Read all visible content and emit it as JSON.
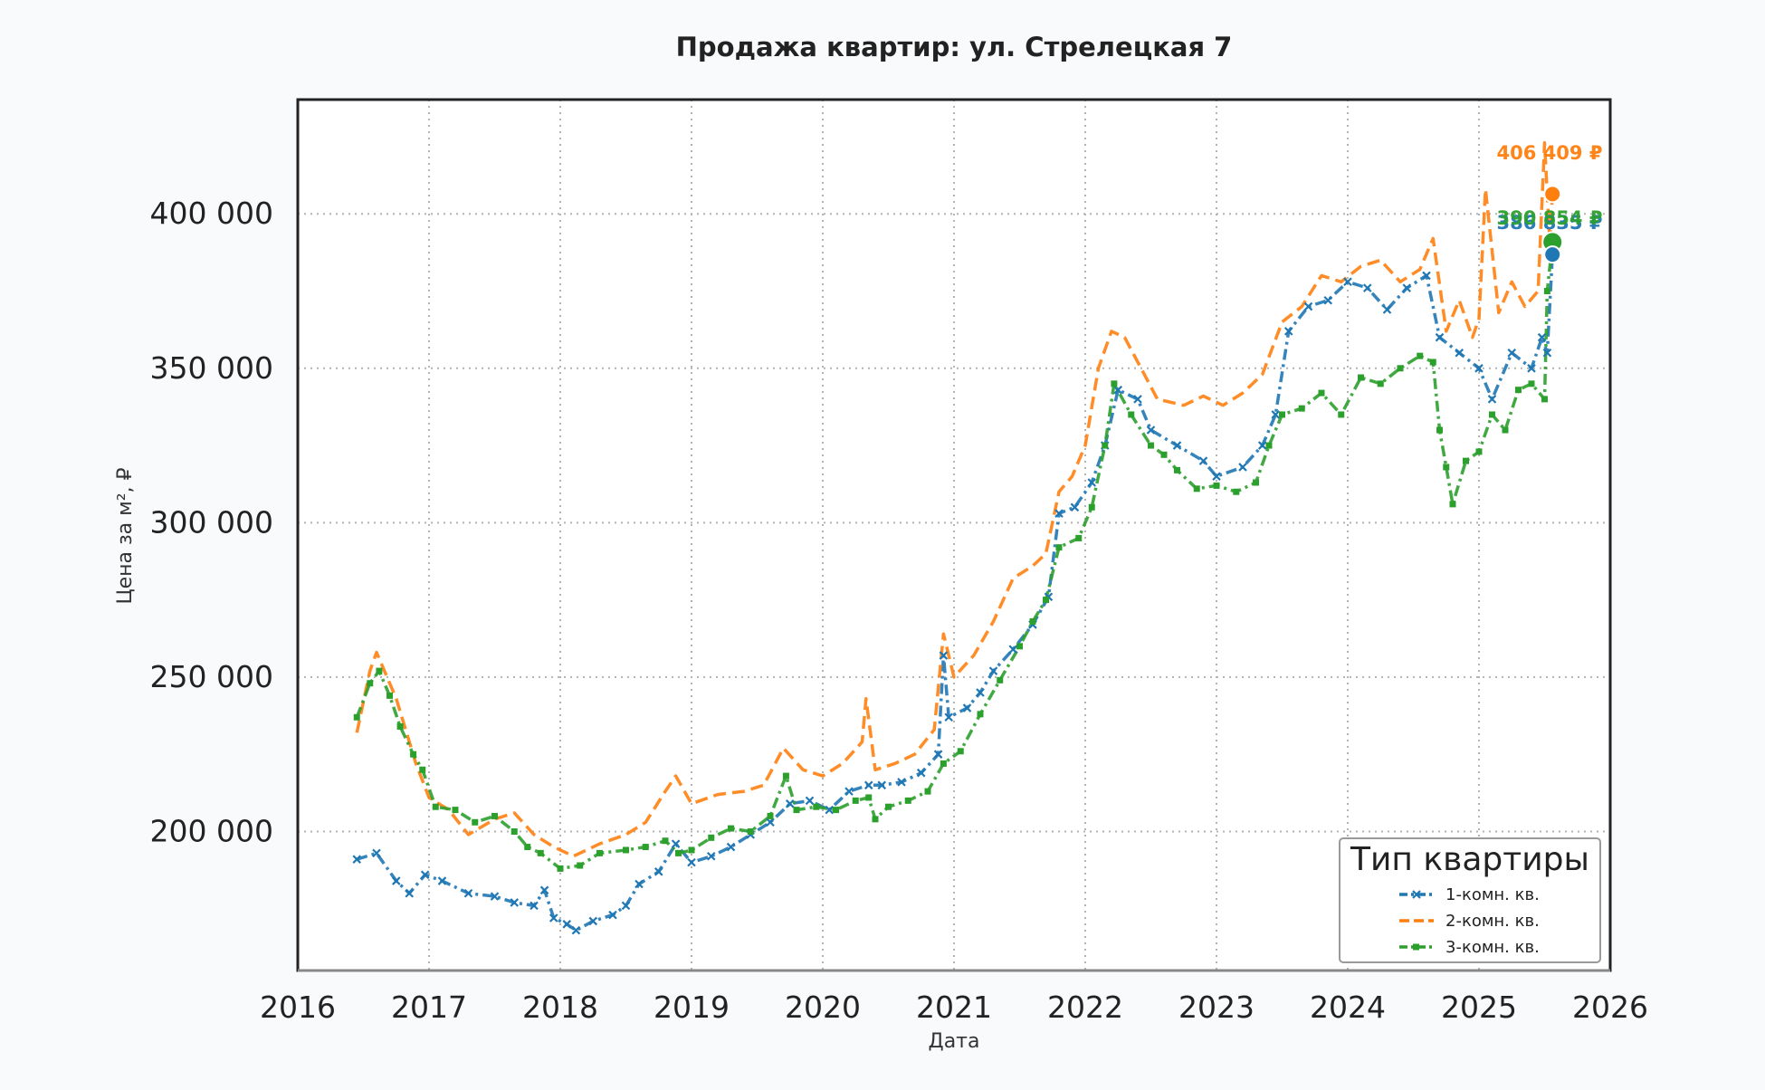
{
  "chart_data": {
    "type": "line",
    "title": "Продажа квартир: ул. Стрелецкая 7",
    "xlabel": "Дата",
    "ylabel": "Цена за м², ₽",
    "xlim": [
      2016.0,
      2026.0
    ],
    "ylim": [
      155000,
      437000
    ],
    "x_ticks": [
      2016,
      2017,
      2018,
      2019,
      2020,
      2021,
      2022,
      2023,
      2024,
      2025,
      2026
    ],
    "x_tick_labels": [
      "2016",
      "2017",
      "2018",
      "2019",
      "2020",
      "2021",
      "2022",
      "2023",
      "2024",
      "2025",
      "2026"
    ],
    "y_ticks": [
      200000,
      250000,
      300000,
      350000,
      400000
    ],
    "y_tick_labels": [
      "200 000",
      "250 000",
      "300 000",
      "350 000",
      "400 000"
    ],
    "grid": true,
    "legend": {
      "title": "Тип квартиры",
      "placement": "bottom-right"
    },
    "series": [
      {
        "name": "1-комн. кв.",
        "color": "#1f77b4",
        "dash": "dashdot",
        "marker": "x",
        "points": [
          [
            2016.45,
            191000
          ],
          [
            2016.6,
            193000
          ],
          [
            2016.75,
            184000
          ],
          [
            2016.85,
            180000
          ],
          [
            2016.97,
            186000
          ],
          [
            2017.1,
            184000
          ],
          [
            2017.3,
            180000
          ],
          [
            2017.5,
            179000
          ],
          [
            2017.65,
            177000
          ],
          [
            2017.8,
            176000
          ],
          [
            2017.88,
            181000
          ],
          [
            2017.95,
            172000
          ],
          [
            2018.05,
            170000
          ],
          [
            2018.12,
            168000
          ],
          [
            2018.25,
            171000
          ],
          [
            2018.4,
            173000
          ],
          [
            2018.5,
            176000
          ],
          [
            2018.6,
            183000
          ],
          [
            2018.75,
            187000
          ],
          [
            2018.88,
            196000
          ],
          [
            2019.0,
            190000
          ],
          [
            2019.15,
            192000
          ],
          [
            2019.3,
            195000
          ],
          [
            2019.45,
            199000
          ],
          [
            2019.6,
            203000
          ],
          [
            2019.75,
            209000
          ],
          [
            2019.9,
            210000
          ],
          [
            2020.05,
            207000
          ],
          [
            2020.2,
            213000
          ],
          [
            2020.35,
            215000
          ],
          [
            2020.45,
            215000
          ],
          [
            2020.6,
            216000
          ],
          [
            2020.75,
            219000
          ],
          [
            2020.88,
            225000
          ],
          [
            2020.92,
            257000
          ],
          [
            2020.96,
            237000
          ],
          [
            2021.1,
            240000
          ],
          [
            2021.2,
            245000
          ],
          [
            2021.3,
            252000
          ],
          [
            2021.45,
            259000
          ],
          [
            2021.6,
            267000
          ],
          [
            2021.72,
            276000
          ],
          [
            2021.8,
            303000
          ],
          [
            2021.92,
            305000
          ],
          [
            2022.05,
            313000
          ],
          [
            2022.15,
            325000
          ],
          [
            2022.25,
            343000
          ],
          [
            2022.4,
            340000
          ],
          [
            2022.5,
            330000
          ],
          [
            2022.7,
            325000
          ],
          [
            2022.9,
            320000
          ],
          [
            2023.0,
            315000
          ],
          [
            2023.2,
            318000
          ],
          [
            2023.35,
            325000
          ],
          [
            2023.45,
            335000
          ],
          [
            2023.55,
            362000
          ],
          [
            2023.7,
            370000
          ],
          [
            2023.85,
            372000
          ],
          [
            2024.0,
            378000
          ],
          [
            2024.15,
            376000
          ],
          [
            2024.3,
            369000
          ],
          [
            2024.45,
            376000
          ],
          [
            2024.6,
            380000
          ],
          [
            2024.7,
            360000
          ],
          [
            2024.85,
            355000
          ],
          [
            2025.0,
            350000
          ],
          [
            2025.1,
            340000
          ],
          [
            2025.25,
            355000
          ],
          [
            2025.4,
            350000
          ],
          [
            2025.48,
            360000
          ],
          [
            2025.52,
            355000
          ],
          [
            2025.56,
            386835
          ]
        ]
      },
      {
        "name": "2-комн. кв.",
        "color": "#ff7f0e",
        "dash": "dashed",
        "marker": "none",
        "points": [
          [
            2016.45,
            232000
          ],
          [
            2016.55,
            252000
          ],
          [
            2016.6,
            258000
          ],
          [
            2016.75,
            243000
          ],
          [
            2016.9,
            222000
          ],
          [
            2017.0,
            211000
          ],
          [
            2017.15,
            207000
          ],
          [
            2017.3,
            199000
          ],
          [
            2017.5,
            204000
          ],
          [
            2017.65,
            206000
          ],
          [
            2017.8,
            199000
          ],
          [
            2017.95,
            195000
          ],
          [
            2018.1,
            192000
          ],
          [
            2018.3,
            196000
          ],
          [
            2018.5,
            199000
          ],
          [
            2018.65,
            203000
          ],
          [
            2018.8,
            213000
          ],
          [
            2018.88,
            218000
          ],
          [
            2019.0,
            209000
          ],
          [
            2019.2,
            212000
          ],
          [
            2019.4,
            213000
          ],
          [
            2019.55,
            215000
          ],
          [
            2019.7,
            227000
          ],
          [
            2019.85,
            220000
          ],
          [
            2020.0,
            218000
          ],
          [
            2020.15,
            222000
          ],
          [
            2020.3,
            229000
          ],
          [
            2020.33,
            243000
          ],
          [
            2020.4,
            220000
          ],
          [
            2020.55,
            222000
          ],
          [
            2020.7,
            225000
          ],
          [
            2020.85,
            233000
          ],
          [
            2020.92,
            264000
          ],
          [
            2021.0,
            250000
          ],
          [
            2021.15,
            257000
          ],
          [
            2021.3,
            268000
          ],
          [
            2021.45,
            282000
          ],
          [
            2021.6,
            286000
          ],
          [
            2021.7,
            290000
          ],
          [
            2021.8,
            310000
          ],
          [
            2021.9,
            315000
          ],
          [
            2022.0,
            325000
          ],
          [
            2022.1,
            350000
          ],
          [
            2022.2,
            362000
          ],
          [
            2022.3,
            360000
          ],
          [
            2022.45,
            348000
          ],
          [
            2022.55,
            340000
          ],
          [
            2022.75,
            338000
          ],
          [
            2022.9,
            341000
          ],
          [
            2023.05,
            338000
          ],
          [
            2023.2,
            342000
          ],
          [
            2023.35,
            348000
          ],
          [
            2023.5,
            365000
          ],
          [
            2023.65,
            370000
          ],
          [
            2023.8,
            380000
          ],
          [
            2023.95,
            378000
          ],
          [
            2024.1,
            383000
          ],
          [
            2024.25,
            385000
          ],
          [
            2024.4,
            378000
          ],
          [
            2024.55,
            382000
          ],
          [
            2024.65,
            392000
          ],
          [
            2024.75,
            362000
          ],
          [
            2024.85,
            372000
          ],
          [
            2024.95,
            360000
          ],
          [
            2025.0,
            366000
          ],
          [
            2025.05,
            408000
          ],
          [
            2025.15,
            368000
          ],
          [
            2025.25,
            378000
          ],
          [
            2025.35,
            370000
          ],
          [
            2025.45,
            375000
          ],
          [
            2025.5,
            423000
          ],
          [
            2025.54,
            390000
          ],
          [
            2025.56,
            406409
          ]
        ]
      },
      {
        "name": "3-комн. кв.",
        "color": "#2ca02c",
        "dash": "dashdot",
        "marker": "square",
        "points": [
          [
            2016.45,
            237000
          ],
          [
            2016.55,
            248000
          ],
          [
            2016.62,
            252000
          ],
          [
            2016.7,
            244000
          ],
          [
            2016.78,
            234000
          ],
          [
            2016.88,
            225000
          ],
          [
            2016.95,
            220000
          ],
          [
            2017.05,
            208000
          ],
          [
            2017.2,
            207000
          ],
          [
            2017.35,
            203000
          ],
          [
            2017.5,
            205000
          ],
          [
            2017.65,
            200000
          ],
          [
            2017.75,
            195000
          ],
          [
            2017.85,
            193000
          ],
          [
            2018.0,
            188000
          ],
          [
            2018.15,
            189000
          ],
          [
            2018.3,
            193000
          ],
          [
            2018.5,
            194000
          ],
          [
            2018.65,
            195000
          ],
          [
            2018.8,
            197000
          ],
          [
            2018.9,
            193000
          ],
          [
            2019.0,
            194000
          ],
          [
            2019.15,
            198000
          ],
          [
            2019.3,
            201000
          ],
          [
            2019.45,
            200000
          ],
          [
            2019.6,
            205000
          ],
          [
            2019.72,
            218000
          ],
          [
            2019.8,
            207000
          ],
          [
            2019.95,
            208000
          ],
          [
            2020.1,
            207000
          ],
          [
            2020.25,
            210000
          ],
          [
            2020.35,
            211000
          ],
          [
            2020.4,
            204000
          ],
          [
            2020.5,
            208000
          ],
          [
            2020.65,
            210000
          ],
          [
            2020.8,
            213000
          ],
          [
            2020.92,
            222000
          ],
          [
            2021.05,
            226000
          ],
          [
            2021.2,
            238000
          ],
          [
            2021.35,
            249000
          ],
          [
            2021.5,
            260000
          ],
          [
            2021.6,
            268000
          ],
          [
            2021.7,
            275000
          ],
          [
            2021.8,
            292000
          ],
          [
            2021.95,
            295000
          ],
          [
            2022.05,
            305000
          ],
          [
            2022.15,
            325000
          ],
          [
            2022.22,
            345000
          ],
          [
            2022.35,
            335000
          ],
          [
            2022.5,
            325000
          ],
          [
            2022.6,
            322000
          ],
          [
            2022.7,
            317000
          ],
          [
            2022.85,
            311000
          ],
          [
            2023.0,
            312000
          ],
          [
            2023.15,
            310000
          ],
          [
            2023.3,
            313000
          ],
          [
            2023.4,
            325000
          ],
          [
            2023.5,
            335000
          ],
          [
            2023.65,
            337000
          ],
          [
            2023.8,
            342000
          ],
          [
            2023.95,
            335000
          ],
          [
            2024.1,
            347000
          ],
          [
            2024.25,
            345000
          ],
          [
            2024.4,
            350000
          ],
          [
            2024.55,
            354000
          ],
          [
            2024.65,
            352000
          ],
          [
            2024.7,
            330000
          ],
          [
            2024.75,
            318000
          ],
          [
            2024.8,
            306000
          ],
          [
            2024.9,
            320000
          ],
          [
            2025.0,
            323000
          ],
          [
            2025.1,
            335000
          ],
          [
            2025.2,
            330000
          ],
          [
            2025.3,
            343000
          ],
          [
            2025.4,
            345000
          ],
          [
            2025.5,
            340000
          ],
          [
            2025.52,
            375000
          ],
          [
            2025.56,
            390854
          ]
        ]
      }
    ],
    "annotations": [
      {
        "series": "2-комн. кв.",
        "x": 2025.56,
        "y": 406409,
        "text": "406 409 ₽",
        "color": "#ff7f0e"
      },
      {
        "series": "3-комн. кв.",
        "x": 2025.56,
        "y": 390854,
        "text": "390 854 ₽",
        "color": "#2ca02c"
      },
      {
        "series": "1-комн. кв.",
        "x": 2025.56,
        "y": 386835,
        "text": "386 835 ₽",
        "color": "#1f77b4"
      }
    ]
  }
}
